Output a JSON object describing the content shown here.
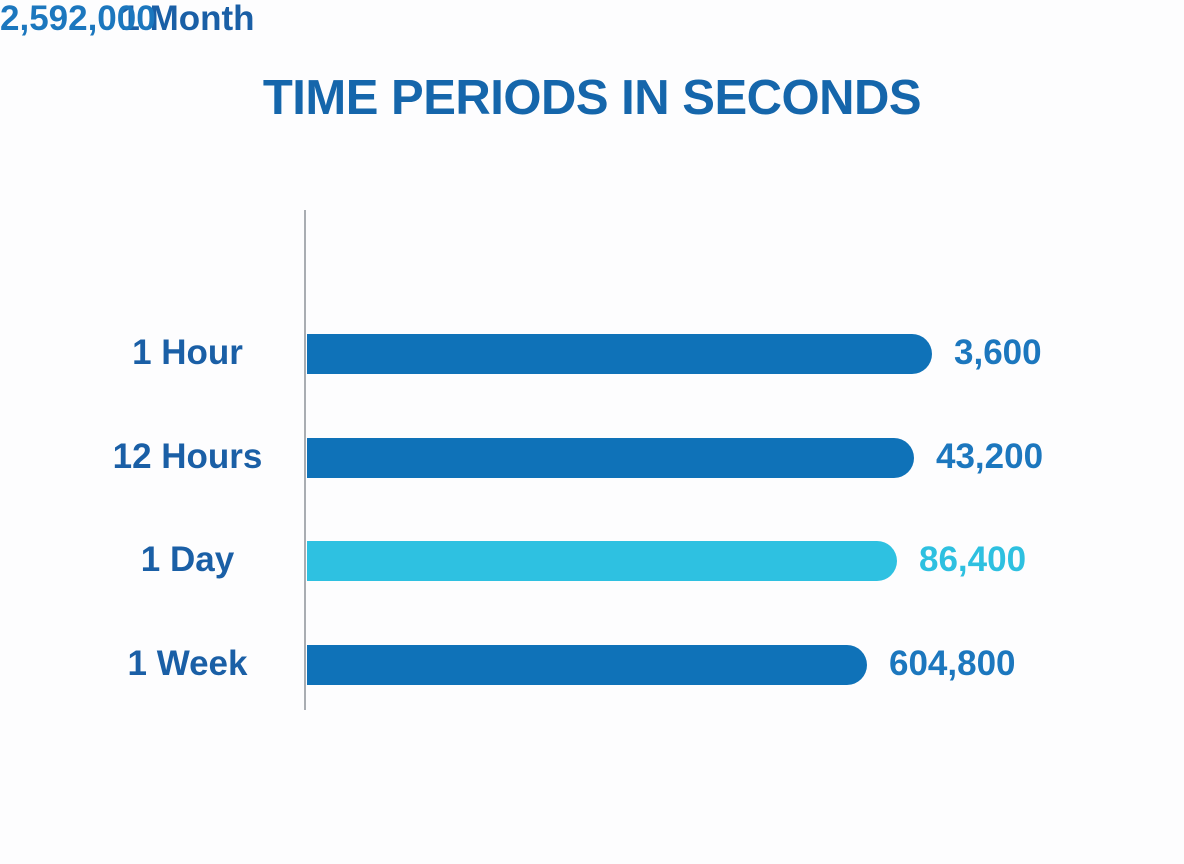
{
  "title": "TIME PERIODS IN SECONDS",
  "colors": {
    "title_blue": "#1566AB",
    "label_blue": "#1A5FA6",
    "value_blue": "#1C77BE",
    "value_cyan": "#2EC0E0",
    "bar_blue": "#0F72B8",
    "bar_cyan": "#2EC1E1",
    "axis_gray": "#A9ADB2",
    "background": "#FDFDFE"
  },
  "rows": [
    {
      "label": "1 Hour",
      "value_label": "3,600",
      "value": 3600,
      "highlight": false
    },
    {
      "label": "12 Hours",
      "value_label": "43,200",
      "value": 43200,
      "highlight": false
    },
    {
      "label": "1 Day",
      "value_label": "86,400",
      "value": 86400,
      "highlight": true
    },
    {
      "label": "1 Week",
      "value_label": "604,800",
      "value": 604800,
      "highlight": false
    },
    {
      "label": "1 Month",
      "value_label": "2,592,000",
      "value": 2592000,
      "highlight": false
    }
  ],
  "chart_data": {
    "type": "bar",
    "orientation": "horizontal",
    "title": "TIME PERIODS IN SECONDS",
    "categories": [
      "1 Hour",
      "12 Hours",
      "1 Day",
      "1 Week",
      "1 Month"
    ],
    "values": [
      3600,
      43200,
      86400,
      604800,
      2592000
    ],
    "value_labels": [
      "3,600",
      "43,200",
      "86,400",
      "604,800",
      "2,592,000"
    ],
    "highlighted_category": "1 Day",
    "legend": "none",
    "grid": false,
    "bars_to_scale": false
  }
}
